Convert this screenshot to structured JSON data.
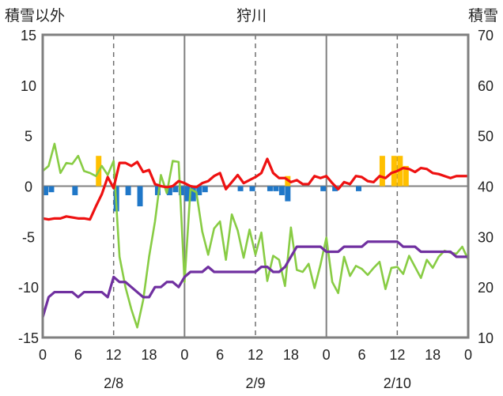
{
  "chart_data": {
    "type": "line",
    "title": "狩川",
    "y_left_label": "積雪以外",
    "y_right_label": "積雪",
    "y_left_range": [
      -15,
      15
    ],
    "y_left_ticks": [
      "15",
      "10",
      "5",
      "0",
      "-5",
      "-10",
      "-15"
    ],
    "y_right_range": [
      10,
      70
    ],
    "y_right_ticks": [
      "70",
      "60",
      "50",
      "40",
      "30",
      "20",
      "10"
    ],
    "x_range_hours": [
      0,
      72
    ],
    "x_tick_labels": [
      "0",
      "6",
      "12",
      "18",
      "0",
      "6",
      "12",
      "18",
      "0",
      "6",
      "12",
      "18",
      "0"
    ],
    "date_labels": [
      {
        "hour": 12,
        "label": "2/8"
      },
      {
        "hour": 36,
        "label": "2/9"
      },
      {
        "hour": 60,
        "label": "2/10"
      }
    ],
    "grid": true,
    "colors": {
      "red": "#ee1111",
      "green": "#88cc44",
      "purple": "#7030a0",
      "blue": "#1f77c8",
      "orange": "#ffc000",
      "axis": "#808080"
    },
    "series_red": [
      -3.2,
      -3.3,
      -3.2,
      -3.2,
      -3.0,
      -3.1,
      -3.2,
      -3.2,
      -3.3,
      -2.0,
      -0.8,
      0.9,
      -0.2,
      2.3,
      2.3,
      2.0,
      2.4,
      1.4,
      1.6,
      0.2,
      0.0,
      -0.1,
      0.0,
      0.5,
      0.3,
      0.0,
      -0.1,
      0.3,
      0.5,
      1.0,
      1.3,
      -0.3,
      0.4,
      1.1,
      0.3,
      0.6,
      0.9,
      1.3,
      2.7,
      1.3,
      0.8,
      0.8,
      0.4,
      0.6,
      0.2,
      0.2,
      1.0,
      0.8,
      1.0,
      0.3,
      -0.3,
      0.4,
      0.2,
      1.0,
      0.9,
      0.5,
      0.4,
      1.0,
      0.8,
      1.3,
      1.5,
      1.8,
      1.7,
      1.4,
      1.8,
      1.7,
      1.3,
      1.2,
      1.0,
      0.8,
      1.0,
      1.0,
      1.0
    ],
    "series_green": [
      1.5,
      2.0,
      4.2,
      1.3,
      2.3,
      2.2,
      3.0,
      1.5,
      1.3,
      1.0,
      2.0,
      1.1,
      2.5,
      -7.0,
      -10.0,
      -12.2,
      -14.0,
      -11.3,
      -7.0,
      -3.5,
      1.1,
      -0.7,
      2.5,
      2.4,
      -9.5,
      -0.3,
      -0.6,
      -4.5,
      -6.8,
      -4.2,
      -3.5,
      -7.3,
      -2.8,
      -4.4,
      -7.1,
      -4.3,
      -6.8,
      -4.6,
      -9.4,
      -6.9,
      -7.3,
      -9.9,
      -4.1,
      -8.3,
      -8.5,
      -7.7,
      -10.1,
      -7.8,
      -5.1,
      -9.5,
      -10.6,
      -7.0,
      -8.9,
      -7.9,
      -8.2,
      -8.8,
      -8.1,
      -7.5,
      -10.2,
      -8.1,
      -8.0,
      -8.7,
      -6.9,
      -8.0,
      -9.1,
      -7.3,
      -8.1,
      -7.0,
      -6.4,
      -6.6,
      -6.7,
      -6.0,
      -7.3
    ],
    "series_purple": [
      14,
      18,
      19,
      19,
      19,
      19,
      18,
      19,
      19,
      19,
      19,
      18,
      22,
      21,
      21,
      20,
      19,
      18,
      18,
      20,
      20,
      21,
      21,
      20,
      22,
      23,
      23,
      23,
      24,
      23,
      23,
      23,
      23,
      23,
      23,
      23,
      23,
      24,
      24,
      23,
      23,
      24,
      26,
      28,
      28,
      28,
      28,
      28,
      27,
      27,
      27,
      28,
      28,
      28,
      28,
      29,
      29,
      29,
      29,
      29,
      29,
      28,
      28,
      28,
      27,
      27,
      27,
      27,
      27,
      27,
      26,
      26,
      26
    ],
    "bars_blue": [
      [
        0.5,
        -0.9
      ],
      [
        1.5,
        -0.6
      ],
      [
        5.5,
        -0.9
      ],
      [
        12.5,
        -2.5
      ],
      [
        14.5,
        -0.9
      ],
      [
        16.5,
        -2.0
      ],
      [
        19.5,
        -0.9
      ],
      [
        21.5,
        -0.9
      ],
      [
        22.5,
        -0.6
      ],
      [
        23.5,
        -0.9
      ],
      [
        24.5,
        -1.5
      ],
      [
        25.5,
        -1.5
      ],
      [
        26.5,
        -0.9
      ],
      [
        27.5,
        -0.6
      ],
      [
        33.5,
        -0.5
      ],
      [
        35.5,
        -0.5
      ],
      [
        38.5,
        -0.5
      ],
      [
        39.5,
        -0.5
      ],
      [
        40.5,
        -0.9
      ],
      [
        41.5,
        -1.5
      ],
      [
        47.5,
        -0.5
      ],
      [
        49.5,
        -0.5
      ],
      [
        53.5,
        -0.5
      ]
    ],
    "bars_orange": [
      [
        9.5,
        3.0
      ],
      [
        41.5,
        1.0
      ],
      [
        57.5,
        3.0
      ],
      [
        59.5,
        3.0
      ],
      [
        60.5,
        3.0
      ],
      [
        61.5,
        2.0
      ]
    ]
  }
}
